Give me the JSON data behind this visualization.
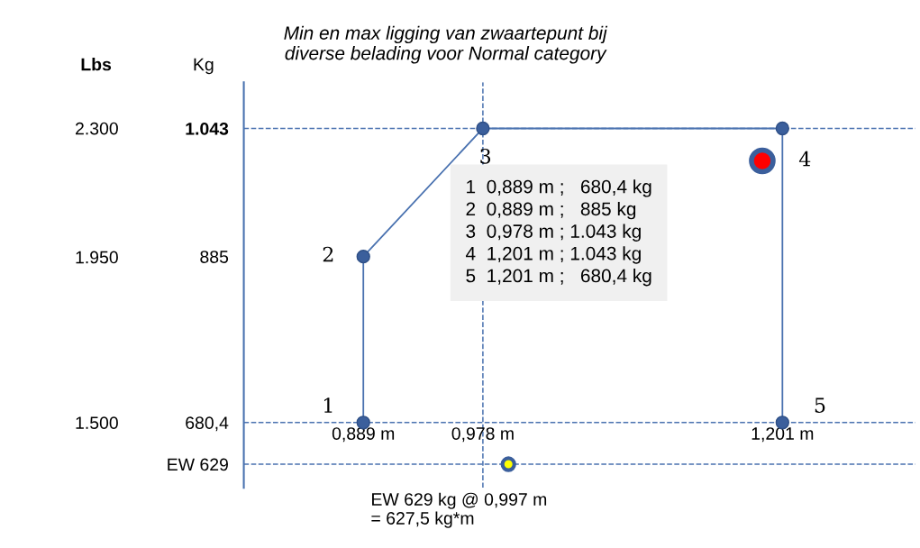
{
  "chart_data": {
    "type": "line",
    "title": "Min en max ligging van zwaartepunt bij\ndiverse belading voor Normal category",
    "ylabel": "Kg",
    "y2label": "Lbs",
    "xlim": [
      0.8,
      1.3
    ],
    "xticks": [
      {
        "value": 0.889,
        "label": "0,889 m"
      },
      {
        "value": 0.978,
        "label": "0,978 m"
      },
      {
        "value": 1.201,
        "label": "1,201 m"
      }
    ],
    "ylim": [
      600,
      1100
    ],
    "yticks": [
      {
        "value": 629,
        "label": "EW 629"
      },
      {
        "value": 680.4,
        "label": "680,4"
      },
      {
        "value": 885,
        "label": "885"
      },
      {
        "value": 1043,
        "label": "1.043"
      }
    ],
    "y2lim": [
      1322.77,
      2425.08
    ],
    "y2ticks": [
      {
        "value": 1500,
        "label": "1.500"
      },
      {
        "value": 1950,
        "label": "1.950"
      },
      {
        "value": 2300,
        "label": "2.300"
      }
    ],
    "grid": false,
    "legend": false,
    "marker": "circle",
    "line_style": "solid",
    "series": [
      {
        "color": "#4a72b0",
        "x": [
          0.889,
          0.889,
          0.978,
          1.201,
          1.201
        ],
        "values": [
          680.4,
          885,
          1043,
          1043,
          680.4
        ]
      },
      {
        "type": "scatter",
        "color": "#ff0000",
        "x": [
          1.186
        ],
        "values": [
          1003
        ]
      },
      {
        "type": "scatter",
        "color": "#ffff00",
        "x": [
          0.997
        ],
        "values": [
          629
        ]
      }
    ],
    "ref_lines": [
      {
        "axis": "y",
        "value": 1043,
        "color": "#4a72b0",
        "line_style": "dashed"
      },
      {
        "axis": "y",
        "value": 680.4,
        "color": "#4a72b0",
        "line_style": "dashed"
      },
      {
        "axis": "y",
        "value": 629,
        "color": "#4a72b0",
        "line_style": "dashed"
      },
      {
        "axis": "x",
        "value": 0.978,
        "color": "#4a72b0",
        "line_style": "dashed"
      }
    ],
    "annotations": [
      {
        "text": "1",
        "x": 0.889,
        "y": 680.4
      },
      {
        "text": "2",
        "x": 0.889,
        "y": 885
      },
      {
        "text": "3",
        "x": 0.978,
        "y": 1043
      },
      {
        "text": "4",
        "x": 1.201,
        "y": 1043
      },
      {
        "text": "5",
        "x": 1.201,
        "y": 680.4
      },
      "1  0,889 m ;   680,4 kg",
      "2  0,889 m ;   885 kg",
      "3  0,978 m ; 1.043 kg",
      "4  1,201 m ; 1.043 kg",
      "5  1,201 m ;   680,4 kg",
      {
        "text": "EW 629 kg @ 0,997 m\n= 627,5 kg*m",
        "x": 0.997,
        "y": 629
      }
    ]
  }
}
